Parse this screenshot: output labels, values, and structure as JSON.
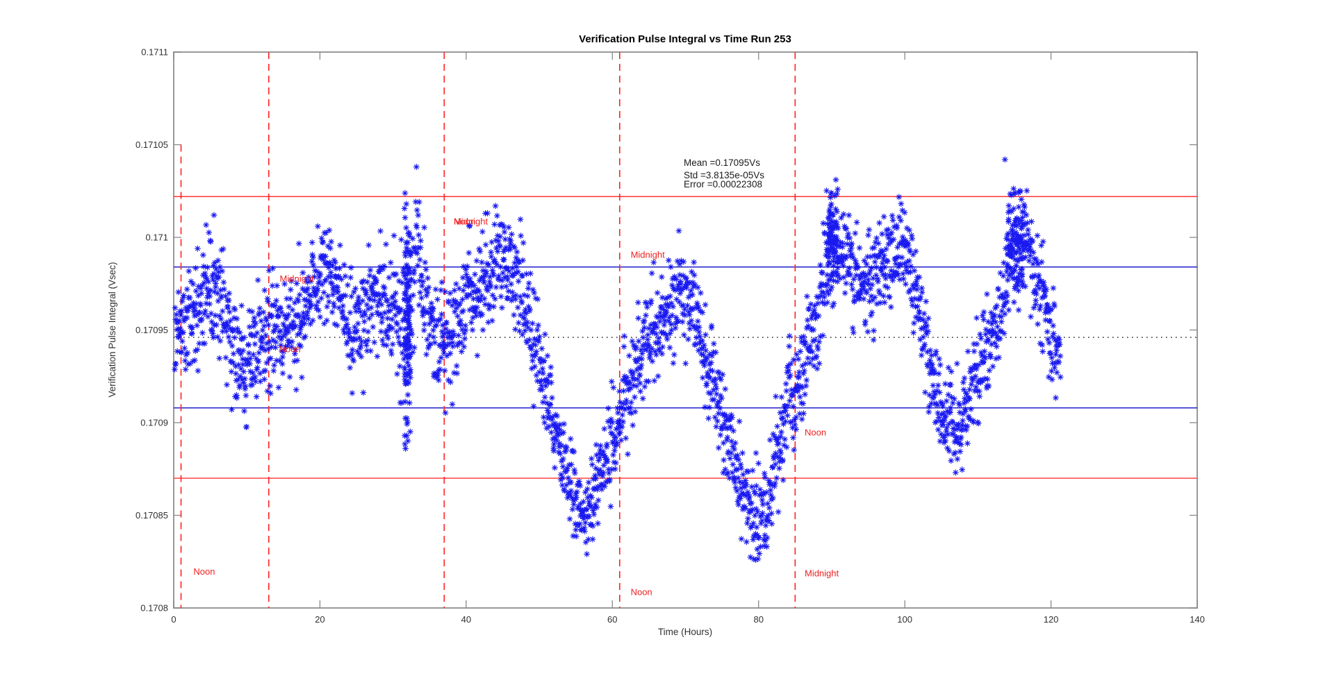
{
  "window": {
    "background": "#ffffff"
  },
  "title": "Verification Pulse Integral vs Time Run 253",
  "axes": {
    "xlabel": "Time (Hours)",
    "ylabel": "Verification Pulse Integral (Vsec)",
    "xlim": [
      0,
      140
    ],
    "ylim": [
      0.1708,
      0.1711
    ],
    "xticks": [
      0,
      20,
      40,
      60,
      80,
      100,
      120,
      140
    ],
    "yticks": [
      0.1708,
      0.17085,
      0.1709,
      0.17095,
      0.171,
      0.17105,
      0.1711
    ],
    "ytick_labels": [
      "0.1708",
      "0.17085",
      "0.1709",
      "0.17095",
      "0.171",
      "0.17105",
      "0.1711"
    ],
    "box": true,
    "tick_direction": "in"
  },
  "annotation": {
    "mean_label": "Mean =0.17095Vs",
    "std_label": "Std =3.8135e-05Vs",
    "error_label": "Error =0.00022308"
  },
  "colors": {
    "marker": "#0000ee",
    "day_line": "#ff2a2a",
    "sigma1_line": "#2929cc",
    "sigma2_line": "#ff3333",
    "mean_line": "#1a1a1a",
    "axis_box": "#999999",
    "tick": "#888888",
    "tick_label": "#303030",
    "day_label": "#f02020",
    "annotation_text": "#1a1a1a",
    "background": "#ffffff"
  },
  "chart_data": {
    "type": "scatter",
    "title": "Verification Pulse Integral vs Time Run 253",
    "xlabel": "Time (Hours)",
    "ylabel": "Verification Pulse Integral (Vsec)",
    "xlim": [
      0,
      140
    ],
    "ylim": [
      0.1708,
      0.1711
    ],
    "legend": null,
    "grid": false,
    "marker": "asterisk",
    "stats": {
      "mean_vs": 0.170946,
      "std_vs": 3.8135e-05,
      "error": 0.00022308
    },
    "reference_lines": {
      "mean_dotted": 0.170946,
      "one_std_blue": [
        0.170984,
        0.170908
      ],
      "two_std_red": [
        0.171022,
        0.17087
      ]
    },
    "day_lines": [
      {
        "t": 1,
        "v_top": 0.17105,
        "v_bottom": 0.1708
      },
      {
        "t": 13,
        "v_top": 0.1711,
        "v_bottom": 0.1708
      },
      {
        "t": 37,
        "v_top": 0.1711,
        "v_bottom": 0.1708
      },
      {
        "t": 61,
        "v_top": 0.1711,
        "v_bottom": 0.1708
      },
      {
        "t": 85,
        "v_top": 0.1711,
        "v_bottom": 0.1708
      }
    ],
    "day_labels": [
      {
        "text": "Noon",
        "t": 2.7,
        "v": 0.170818
      },
      {
        "text": "Midnight",
        "t": 14.5,
        "v": 0.170976
      },
      {
        "text": "Noon",
        "t": 14.4,
        "v": 0.170938
      },
      {
        "text": "Midnight",
        "t": 38.3,
        "v": 0.171007
      },
      {
        "text": "Noon",
        "t": 38.3,
        "v": 0.171007
      },
      {
        "text": "Midnight",
        "t": 62.5,
        "v": 0.170989
      },
      {
        "text": "Noon",
        "t": 62.5,
        "v": 0.170807
      },
      {
        "text": "Noon",
        "t": 86.3,
        "v": 0.170893
      },
      {
        "text": "Midnight",
        "t": 86.3,
        "v": 0.170817
      }
    ],
    "band_profile": [
      [
        0.0,
        0.170948,
        1.6e-05
      ],
      [
        2.0,
        0.170952,
        1.6e-05
      ],
      [
        3.5,
        0.17096,
        1.7e-05
      ],
      [
        5.0,
        0.170974,
        1.6e-05
      ],
      [
        5.8,
        0.170978,
        1.5e-05
      ],
      [
        7.0,
        0.170956,
        1.5e-05
      ],
      [
        8.5,
        0.170936,
        1.4e-05
      ],
      [
        10.0,
        0.170934,
        1.4e-05
      ],
      [
        12.0,
        0.17094,
        1.5e-05
      ],
      [
        14.0,
        0.170946,
        1.5e-05
      ],
      [
        16.0,
        0.170952,
        1.5e-05
      ],
      [
        18.0,
        0.170962,
        1.5e-05
      ],
      [
        20.0,
        0.17098,
        1.4e-05
      ],
      [
        21.0,
        0.170988,
        1.4e-05
      ],
      [
        22.5,
        0.170977,
        1.4e-05
      ],
      [
        24.0,
        0.170955,
        1.4e-05
      ],
      [
        25.0,
        0.170948,
        1.4e-05
      ],
      [
        26.5,
        0.170958,
        1.5e-05
      ],
      [
        28.0,
        0.170968,
        1.5e-05
      ],
      [
        29.5,
        0.170961,
        1.6e-05
      ],
      [
        31.0,
        0.170954,
        2e-05
      ],
      [
        32.0,
        0.170956,
        3e-05
      ],
      [
        32.8,
        0.17098,
        2e-05
      ],
      [
        33.3,
        0.171003,
        1.3e-05
      ],
      [
        34.0,
        0.17097,
        1.5e-05
      ],
      [
        35.5,
        0.17095,
        1.6e-05
      ],
      [
        37.0,
        0.170946,
        1.6e-05
      ],
      [
        39.0,
        0.170956,
        1.6e-05
      ],
      [
        41.0,
        0.170968,
        1.6e-05
      ],
      [
        43.0,
        0.17098,
        1.5e-05
      ],
      [
        44.5,
        0.170989,
        1.4e-05
      ],
      [
        46.0,
        0.170985,
        1.4e-05
      ],
      [
        48.0,
        0.170966,
        1.5e-05
      ],
      [
        50.0,
        0.170934,
        1.4e-05
      ],
      [
        52.0,
        0.170903,
        1.3e-05
      ],
      [
        54.0,
        0.170871,
        1.2e-05
      ],
      [
        55.5,
        0.170853,
        1.1e-05
      ],
      [
        56.5,
        0.17085,
        1.1e-05
      ],
      [
        58.0,
        0.170864,
        1.2e-05
      ],
      [
        60.0,
        0.17089,
        1.3e-05
      ],
      [
        62.0,
        0.170917,
        1.4e-05
      ],
      [
        64.0,
        0.170941,
        1.4e-05
      ],
      [
        66.0,
        0.170952,
        1.4e-05
      ],
      [
        68.0,
        0.170962,
        1.4e-05
      ],
      [
        69.5,
        0.170969,
        1.4e-05
      ],
      [
        71.0,
        0.170961,
        1.4e-05
      ],
      [
        73.0,
        0.170936,
        1.4e-05
      ],
      [
        75.0,
        0.170906,
        1.3e-05
      ],
      [
        77.0,
        0.170876,
        1.3e-05
      ],
      [
        79.0,
        0.170852,
        1.3e-05
      ],
      [
        80.3,
        0.170845,
        1.4e-05
      ],
      [
        81.5,
        0.170866,
        1.4e-05
      ],
      [
        83.0,
        0.170893,
        1.5e-05
      ],
      [
        84.5,
        0.170911,
        1.5e-05
      ],
      [
        86.0,
        0.170928,
        1.4e-05
      ],
      [
        88.0,
        0.170954,
        1.4e-05
      ],
      [
        89.3,
        0.170984,
        1.4e-05
      ],
      [
        90.3,
        0.171002,
        1.3e-05
      ],
      [
        91.5,
        0.170992,
        1.3e-05
      ],
      [
        93.0,
        0.170978,
        1.3e-05
      ],
      [
        94.5,
        0.170971,
        1.3e-05
      ],
      [
        96.0,
        0.170979,
        1.3e-05
      ],
      [
        98.0,
        0.170988,
        1.3e-05
      ],
      [
        99.5,
        0.170996,
        1.3e-05
      ],
      [
        100.8,
        0.170984,
        1.3e-05
      ],
      [
        102.0,
        0.170962,
        1.3e-05
      ],
      [
        103.5,
        0.170932,
        1.3e-05
      ],
      [
        105.0,
        0.170903,
        1.2e-05
      ],
      [
        106.5,
        0.170896,
        1.2e-05
      ],
      [
        108.0,
        0.170907,
        1.2e-05
      ],
      [
        110.0,
        0.170927,
        1.2e-05
      ],
      [
        112.0,
        0.170945,
        1.2e-05
      ],
      [
        113.5,
        0.17096,
        1.3e-05
      ],
      [
        114.5,
        0.170992,
        1.3e-05
      ],
      [
        115.5,
        0.171001,
        1.2e-05
      ],
      [
        116.5,
        0.170996,
        1.2e-05
      ],
      [
        118.0,
        0.17098,
        1.2e-05
      ],
      [
        119.5,
        0.170958,
        1.2e-05
      ],
      [
        120.7,
        0.170944,
        1.2e-05
      ],
      [
        121.3,
        0.170938,
        1.2e-05
      ]
    ],
    "bursts": [
      {
        "t0": 31.55,
        "t1": 32.4,
        "n": 110,
        "c": 0.170952,
        "s": 3e-05
      },
      {
        "t0": 89.3,
        "t1": 91.0,
        "n": 70,
        "c": 0.170998,
        "s": 1.6e-05
      },
      {
        "t0": 114.0,
        "t1": 116.5,
        "n": 80,
        "c": 0.170996,
        "s": 1.6e-05
      }
    ],
    "outliers": [
      [
        5.5,
        0.171012
      ],
      [
        31.9,
        0.170893
      ],
      [
        33.2,
        0.171038
      ],
      [
        55.8,
        0.170842
      ],
      [
        79.6,
        0.170826
      ],
      [
        113.7,
        0.171042
      ]
    ],
    "t_range": [
      0.15,
      121.3
    ],
    "points_per_hour": 23,
    "seed": 253
  }
}
